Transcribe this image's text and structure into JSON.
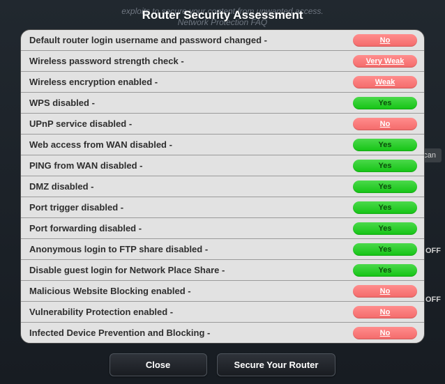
{
  "background": {
    "line1": "exploits to secure your content from unwanted access.",
    "line2": "Network Protection FAQ",
    "scan": "can",
    "off": "OFF"
  },
  "dialog": {
    "title": "Router Security Assessment",
    "close_label": "Close",
    "secure_label": "Secure Your Router",
    "colors": {
      "pass": "#14c414",
      "fail": "#f46a6a"
    },
    "items": [
      {
        "label": "Default router login username and password changed -",
        "status": "No",
        "pass": false
      },
      {
        "label": "Wireless password strength check -",
        "status": "Very Weak",
        "pass": false
      },
      {
        "label": "Wireless encryption enabled -",
        "status": "Weak",
        "pass": false
      },
      {
        "label": "WPS disabled -",
        "status": "Yes",
        "pass": true
      },
      {
        "label": "UPnP service disabled -",
        "status": "No",
        "pass": false
      },
      {
        "label": "Web access from WAN disabled -",
        "status": "Yes",
        "pass": true
      },
      {
        "label": "PING from WAN disabled -",
        "status": "Yes",
        "pass": true
      },
      {
        "label": "DMZ disabled -",
        "status": "Yes",
        "pass": true
      },
      {
        "label": "Port trigger disabled -",
        "status": "Yes",
        "pass": true
      },
      {
        "label": "Port forwarding disabled -",
        "status": "Yes",
        "pass": true
      },
      {
        "label": "Anonymous login to FTP share disabled -",
        "status": "Yes",
        "pass": true
      },
      {
        "label": "Disable guest login for Network Place Share -",
        "status": "Yes",
        "pass": true
      },
      {
        "label": "Malicious Website Blocking enabled -",
        "status": "No",
        "pass": false
      },
      {
        "label": "Vulnerability Protection enabled -",
        "status": "No",
        "pass": false
      },
      {
        "label": "Infected Device Prevention and Blocking -",
        "status": "No",
        "pass": false
      }
    ]
  }
}
